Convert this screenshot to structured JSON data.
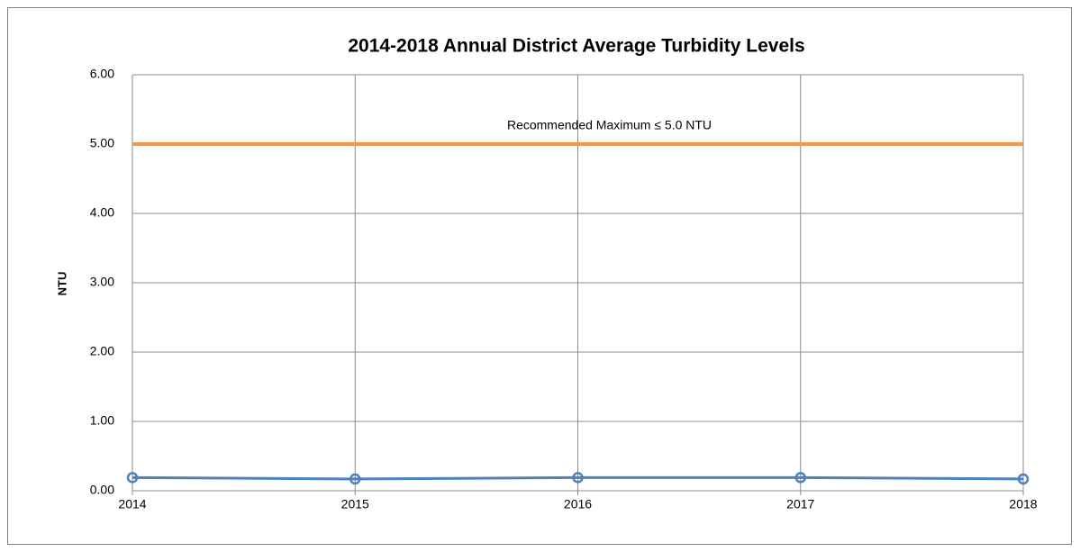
{
  "chart_data": {
    "type": "line",
    "title": "2014-2018 Annual District Average Turbidity Levels",
    "y_label": "NTU",
    "x": [
      2014,
      2015,
      2016,
      2017,
      2018
    ],
    "series": [
      {
        "color": "#4f81bd",
        "values": [
          0.19,
          0.17,
          0.19,
          0.19,
          0.17
        ]
      }
    ],
    "reference_line": {
      "value": 5,
      "label": "Recommended Maximum ≤ 5.0 NTU",
      "color": "#f79646"
    },
    "xlim": [
      2014,
      2018
    ],
    "xticks": [
      2014,
      2015,
      2016,
      2017,
      2018
    ],
    "ylim": [
      0,
      6
    ],
    "yticks": [
      {
        "value": 0,
        "label": "0.00"
      },
      {
        "value": 1,
        "label": "1.00"
      },
      {
        "value": 2,
        "label": "2.00"
      },
      {
        "value": 3,
        "label": "3.00"
      },
      {
        "value": 4,
        "label": "4.00"
      },
      {
        "value": 5,
        "label": "5.00"
      },
      {
        "value": 6,
        "label": "6.00"
      }
    ],
    "grid": true
  }
}
